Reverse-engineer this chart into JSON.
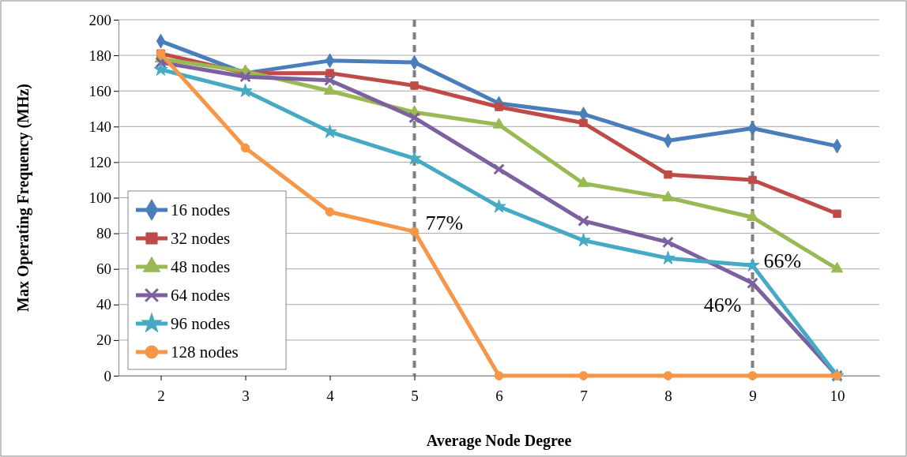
{
  "chart_data": {
    "type": "line",
    "xlabel": "Average Node Degree",
    "ylabel": "Max Operating Frequency (MHz)",
    "categories": [
      "2",
      "3",
      "4",
      "5",
      "6",
      "7",
      "8",
      "9",
      "10"
    ],
    "ylim": [
      0,
      200
    ],
    "yticks": [
      0,
      20,
      40,
      60,
      80,
      100,
      120,
      140,
      160,
      180,
      200
    ],
    "grid": "y",
    "legend": "bottom left",
    "line_style": "solid",
    "series": [
      {
        "name": "16 nodes",
        "color": "#4a7ebb",
        "marker": "diamond",
        "values": [
          188,
          170,
          177,
          176,
          153,
          147,
          132,
          139,
          129
        ]
      },
      {
        "name": "32 nodes",
        "color": "#be4b48",
        "marker": "square",
        "values": [
          181,
          170,
          170,
          163,
          151,
          142,
          113,
          110,
          91
        ]
      },
      {
        "name": "48 nodes",
        "color": "#98b954",
        "marker": "triangle",
        "values": [
          178,
          171,
          160,
          148,
          141,
          108,
          100,
          89,
          60
        ]
      },
      {
        "name": "64 nodes",
        "color": "#7d60a0",
        "marker": "cross",
        "values": [
          176,
          168,
          166,
          145,
          116,
          87,
          75,
          52,
          0
        ]
      },
      {
        "name": "96 nodes",
        "color": "#46aac5",
        "marker": "star",
        "values": [
          172,
          160,
          137,
          122,
          95,
          76,
          66,
          62,
          0
        ]
      },
      {
        "name": "128 nodes",
        "color": "#f79646",
        "marker": "circle",
        "values": [
          181,
          128,
          92,
          81,
          0,
          0,
          0,
          0,
          0
        ]
      }
    ],
    "ref_lines": [
      {
        "axis": "x",
        "value": "5",
        "color": "#808080",
        "line_style": "dashed"
      },
      {
        "axis": "x",
        "value": "9",
        "color": "#808080",
        "line_style": "dashed"
      }
    ],
    "annotations": [
      {
        "text": "77%",
        "x": "5",
        "y": 86
      },
      {
        "text": "66%",
        "x": "9",
        "y": 65
      },
      {
        "text": "46%",
        "x": "9",
        "y": 40
      }
    ]
  }
}
